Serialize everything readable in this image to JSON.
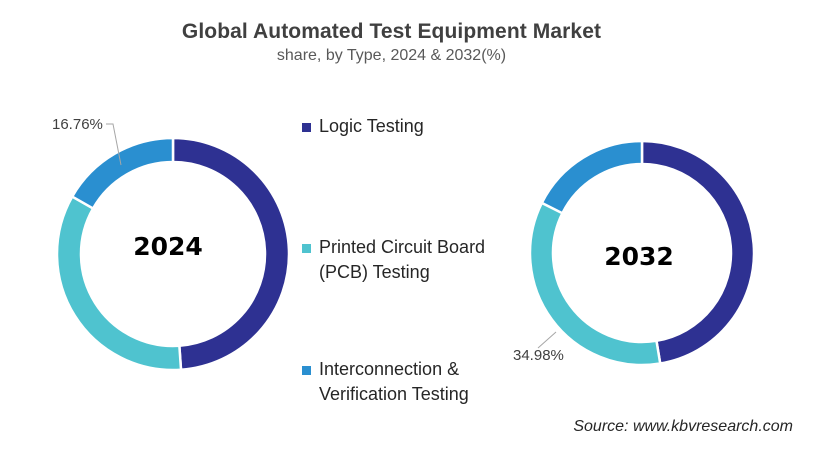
{
  "header": {
    "title": "Global Automated Test Equipment Market",
    "subtitle": "share, by Type, 2024 & 2032(%)"
  },
  "legend": {
    "items": [
      {
        "label_line1": "Logic Testing",
        "label_line2": "",
        "color": "#2E3192"
      },
      {
        "label_line1": "Printed Circuit Board",
        "label_line2": "(PCB) Testing",
        "color": "#4FC3CF"
      },
      {
        "label_line1": "Interconnection &",
        "label_line2": "Verification Testing",
        "color": "#2A8FD0"
      }
    ]
  },
  "charts": {
    "left": {
      "center_label": "2024",
      "callout": "16.76%"
    },
    "right": {
      "center_label": "2032",
      "callout": "34.98%"
    }
  },
  "footer": {
    "source": "Source: www.kbvresearch.com"
  },
  "chart_data": [
    {
      "type": "pie",
      "subtype": "donut",
      "title": "Global Automated Test Equipment Market",
      "subtitle": "share, by Type, 2024 & 2032(%)",
      "center_label": "2024",
      "categories": [
        "Logic Testing",
        "Printed Circuit Board (PCB) Testing",
        "Interconnection & Verification Testing"
      ],
      "values": [
        48.9,
        34.34,
        16.76
      ],
      "value_notes": "Only 16.76% is labeled; other values estimated from arc geometry",
      "colors": [
        "#2E3192",
        "#4FC3CF",
        "#2A8FD0"
      ],
      "annotations": [
        "16.76%"
      ],
      "legend_position": "center"
    },
    {
      "type": "pie",
      "subtype": "donut",
      "title": "Global Automated Test Equipment Market",
      "subtitle": "share, by Type, 2024 & 2032(%)",
      "center_label": "2032",
      "categories": [
        "Logic Testing",
        "Printed Circuit Board (PCB) Testing",
        "Interconnection & Verification Testing"
      ],
      "values": [
        47.4,
        34.98,
        17.62
      ],
      "value_notes": "Only 34.98% is labeled; other values estimated from arc geometry",
      "colors": [
        "#2E3192",
        "#4FC3CF",
        "#2A8FD0"
      ],
      "annotations": [
        "34.98%"
      ],
      "legend_position": "center"
    }
  ]
}
